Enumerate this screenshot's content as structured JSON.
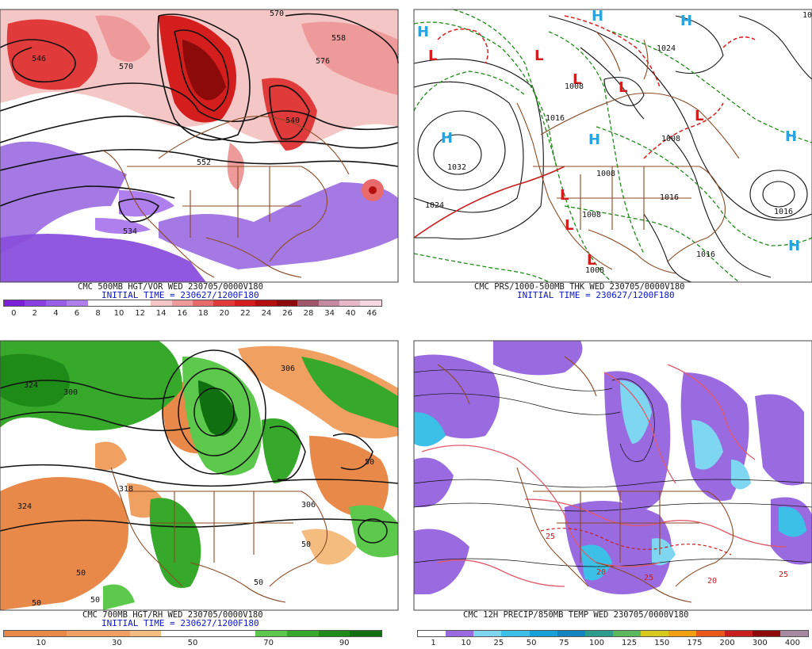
{
  "panels": [
    {
      "title": "CMC 500MB HGT/VOR WED 230705/0000V180",
      "initial": "INITIAL TIME = 230627/1200F180",
      "colorbar": {
        "colors": [
          "#7a1fd6",
          "#8a3fe0",
          "#9a5fe8",
          "#b07fee",
          "#ffffff",
          "#ffffff",
          "#ffffff",
          "#f4c6c6",
          "#ee9a9a",
          "#e86a6a",
          "#e03a3a",
          "#d41e1e",
          "#b41010",
          "#8c0a0a",
          "#a0566a",
          "#c48aa0",
          "#e6b8c8",
          "#f6d8e2"
        ],
        "ticks": [
          "0",
          "2",
          "4",
          "6",
          "8",
          "10",
          "12",
          "14",
          "16",
          "18",
          "20",
          "22",
          "24",
          "26",
          "28",
          "34",
          "40",
          "46"
        ]
      },
      "labels": [
        "546",
        "558",
        "570",
        "570",
        "552",
        "534",
        "576",
        "540"
      ]
    },
    {
      "title": "CMC PRS/1000-500MB THK WED 230705/0000V180",
      "initial": "INITIAL TIME = 230627/1200F180",
      "highs": [
        "H",
        "H",
        "H",
        "H",
        "H",
        "H",
        "H"
      ],
      "lows": [
        "L",
        "L",
        "L",
        "L",
        "L",
        "L",
        "L",
        "L"
      ],
      "labels": [
        "1032",
        "1024",
        "1016",
        "1008",
        "1016",
        "1008",
        "1008",
        "1016",
        "1024",
        "1016",
        "1016",
        "1008",
        "1008"
      ]
    },
    {
      "title": "CMC 700MB HGT/RH WED 230705/0000V180",
      "initial": "INITIAL TIME = 230627/1200F180",
      "colorbar": {
        "colors": [
          "#e8894a",
          "#e8894a",
          "#f0a060",
          "#f0a060",
          "#f5bc80",
          "#ffffff",
          "#ffffff",
          "#ffffff",
          "#5cc84c",
          "#36a82a",
          "#1e8a18",
          "#107010"
        ],
        "ticks": [
          "10",
          "30",
          "50",
          "70",
          "90"
        ]
      },
      "labels": [
        "324",
        "318",
        "306",
        "300",
        "306",
        "50",
        "50",
        "50",
        "50",
        "324",
        "50",
        "50"
      ]
    },
    {
      "title": "CMC 12H PRECIP/850MB TEMP WED 230705/0000V180",
      "initial": "",
      "colorbar": {
        "colors": [
          "#ffffff",
          "#9a6ae0",
          "#7fd6f0",
          "#3cc0e8",
          "#18a0d8",
          "#1484c0",
          "#2c9c8c",
          "#5cb85c",
          "#d8c81c",
          "#f0a010",
          "#e85818",
          "#c81e1e",
          "#8c0a0a",
          "#a88aa0"
        ],
        "ticks": [
          "1",
          "10",
          "25",
          "50",
          "75",
          "100",
          "125",
          "150",
          "175",
          "200",
          "300",
          "400"
        ]
      },
      "labels": [
        "25",
        "20",
        "25",
        "20",
        "25"
      ]
    }
  ]
}
